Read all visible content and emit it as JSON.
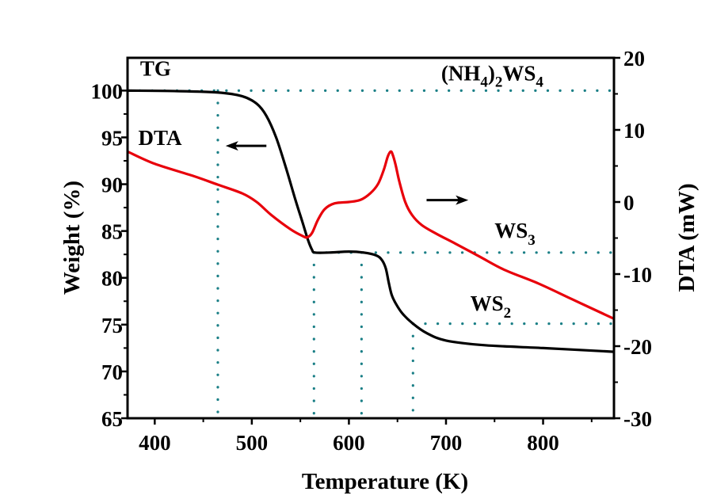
{
  "chart_data": {
    "type": "line",
    "title": "",
    "xlabel": "Temperature (K)",
    "ylabel_left": "Weight (%)",
    "ylabel_right": "DTA (mW)",
    "xlim": [
      372,
      873
    ],
    "ylim_left": [
      65,
      103.5
    ],
    "ylim_right": [
      -30,
      20
    ],
    "x_ticks": [
      400,
      500,
      600,
      700,
      800
    ],
    "x_minor_ticks": [
      450,
      550,
      650,
      750,
      850
    ],
    "y_left_ticks": [
      65,
      70,
      75,
      80,
      85,
      90,
      95,
      100
    ],
    "y_left_minor_ticks": [
      67.5,
      72.5,
      77.5,
      82.5,
      87.5,
      92.5,
      97.5
    ],
    "y_right_ticks": [
      -30,
      -20,
      -10,
      0,
      10,
      20
    ],
    "y_right_minor_ticks": [
      -25,
      -15,
      -5,
      5,
      15
    ],
    "grid": false,
    "series": [
      {
        "name": "TG",
        "axis": "left",
        "color": "#000000",
        "x": [
          372,
          420,
          465,
          490,
          505,
          515,
          525,
          535,
          545,
          552,
          558,
          562,
          565,
          580,
          600,
          615,
          628,
          634,
          638,
          641,
          644,
          648,
          655,
          666,
          680,
          700,
          740,
          800,
          873
        ],
        "y": [
          100,
          99.95,
          99.8,
          99.4,
          98.6,
          97.3,
          95,
          91.8,
          88.3,
          86,
          84,
          83,
          82.7,
          82.7,
          82.8,
          82.7,
          82.4,
          81.9,
          81,
          79.5,
          78.2,
          77.3,
          76.2,
          75.1,
          74.1,
          73.3,
          72.8,
          72.5,
          72.1
        ]
      },
      {
        "name": "DTA",
        "axis": "right",
        "color": "#e8000b",
        "x": [
          372,
          400,
          440,
          465,
          490,
          505,
          520,
          540,
          552,
          557,
          562,
          568,
          575,
          585,
          600,
          612,
          622,
          630,
          636,
          640,
          643,
          645,
          648,
          652,
          658,
          665,
          675,
          690,
          710,
          735,
          760,
          795,
          830,
          873
        ],
        "y": [
          7,
          5.3,
          3.6,
          2.4,
          1.2,
          0,
          -1.8,
          -3.8,
          -4.7,
          -4.9,
          -4.3,
          -2.5,
          -1,
          -0.2,
          0,
          0.3,
          1.2,
          2.5,
          4.5,
          6.3,
          7,
          6.6,
          5.2,
          2.8,
          0,
          -1.8,
          -3.2,
          -4.4,
          -5.8,
          -7.6,
          -9.4,
          -11.3,
          -13.5,
          -16.2
        ]
      }
    ],
    "reference_lines": {
      "horizontal": [
        {
          "label": "(NH4)2WS4",
          "weight": 100,
          "x_from": 372,
          "x_to": 873
        },
        {
          "label": "WS3",
          "weight": 82.7,
          "x_from": 564,
          "x_to": 873
        },
        {
          "label": "WS2",
          "weight": 75.1,
          "x_from": 666,
          "x_to": 873
        }
      ],
      "vertical": [
        465,
        564,
        613,
        666
      ],
      "color": "#1a7f86"
    },
    "annotations": [
      {
        "text": "TG",
        "x": 385,
        "y_left": 101.6
      },
      {
        "text": "DTA",
        "x": 383,
        "y_left": 94.2
      },
      {
        "text_main": "(NH",
        "sub1": "4",
        "mid": ")",
        "sub2": "2",
        "tail": "WS",
        "sub3": "4",
        "x": 695,
        "y_left": 101.1
      },
      {
        "text": "WS",
        "sub": "3",
        "x": 750,
        "y_left": 84.3
      },
      {
        "text": "WS",
        "sub": "2",
        "x": 725,
        "y_left": 76.5
      }
    ],
    "arrows": [
      {
        "direction": "left",
        "meaning": "TG on left axis",
        "x_from": 515,
        "x_to": 473,
        "y_left": 94.1
      },
      {
        "direction": "right",
        "meaning": "DTA on right axis",
        "x_from": 680,
        "x_to": 723,
        "y_left": 88.3
      }
    ],
    "legend": "none"
  }
}
